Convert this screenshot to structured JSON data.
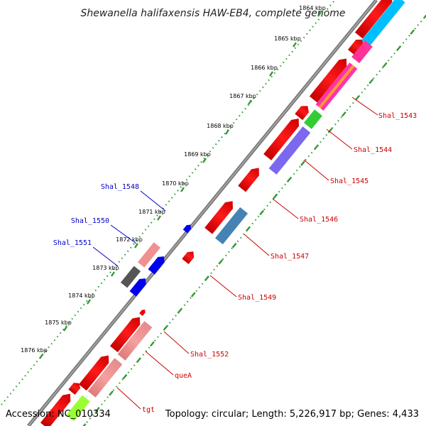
{
  "title": "Shewanella halifaxensis HAW-EB4, complete genome",
  "footer": {
    "accession": "Accession: NC_010334",
    "summary": "Topology: circular; Length: 5,226,917 bp; Genes: 4,433"
  },
  "ticks": [
    "1864 kbp",
    "1865 kbp",
    "1866 kbp",
    "1867 kbp",
    "1868 kbp",
    "1869 kbp",
    "1870 kbp",
    "1871 kbp",
    "1872 kbp",
    "1873 kbp",
    "1874 kbp",
    "1875 kbp",
    "1876 kbp"
  ],
  "labels": [
    {
      "text": "Shal_1543",
      "strand": "plus"
    },
    {
      "text": "Shal_1544",
      "strand": "plus"
    },
    {
      "text": "Shal_1545",
      "strand": "plus"
    },
    {
      "text": "Shal_1546",
      "strand": "plus"
    },
    {
      "text": "Shal_1547",
      "strand": "plus"
    },
    {
      "text": "Shal_1549",
      "strand": "plus"
    },
    {
      "text": "Shal_1552",
      "strand": "plus"
    },
    {
      "text": "queA",
      "strand": "plus"
    },
    {
      "text": "tgt",
      "strand": "plus"
    },
    {
      "text": "Shal_1548",
      "strand": "minus"
    },
    {
      "text": "Shal_1550",
      "strand": "minus"
    },
    {
      "text": "Shal_1551",
      "strand": "minus"
    }
  ],
  "colors": {
    "backbone": "#7a7a7a",
    "cds": "#ff0000",
    "minus_label": "#0000cc",
    "plus_label": "#cc0000",
    "tick_dots": "#339933"
  }
}
